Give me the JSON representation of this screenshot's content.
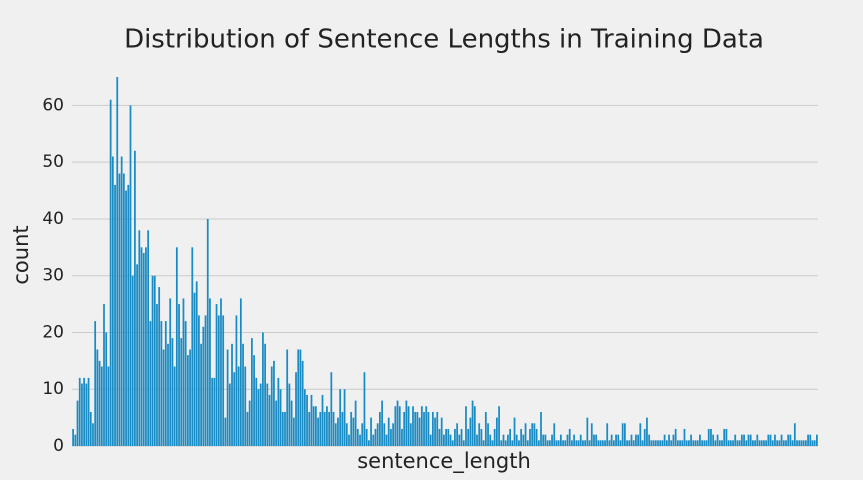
{
  "chart_data": {
    "type": "bar",
    "title": "Distribution of Sentence Lengths in Training Data",
    "x_label": "sentence_length",
    "y_label": "count",
    "color": "#1a8bc3",
    "ylim": [
      0,
      68
    ],
    "yticks": [
      0,
      10,
      20,
      30,
      40,
      50,
      60
    ],
    "grid": true,
    "values": [
      3,
      2,
      8,
      12,
      11,
      12,
      11,
      12,
      6,
      4,
      22,
      17,
      15,
      14,
      25,
      20,
      14,
      61,
      51,
      46,
      65,
      48,
      51,
      48,
      45,
      46,
      60,
      30,
      52,
      32,
      38,
      35,
      34,
      35,
      38,
      22,
      30,
      30,
      25,
      28,
      22,
      17,
      22,
      18,
      26,
      19,
      14,
      35,
      25,
      19,
      26,
      22,
      16,
      17,
      35,
      27,
      29,
      23,
      18,
      21,
      23,
      40,
      26,
      12,
      12,
      25,
      23,
      26,
      23,
      5,
      17,
      11,
      18,
      13,
      23,
      14,
      26,
      18,
      14,
      6,
      8,
      19,
      16,
      12,
      10,
      11,
      20,
      18,
      11,
      9,
      14,
      15,
      8,
      12,
      10,
      6,
      6,
      17,
      11,
      8,
      5,
      13,
      17,
      17,
      15,
      10,
      9,
      6,
      9,
      7,
      7,
      5,
      6,
      9,
      6,
      7,
      6,
      13,
      6,
      4,
      5,
      10,
      6,
      10,
      4,
      2,
      6,
      5,
      8,
      3,
      2,
      4,
      13,
      3,
      1,
      5,
      2,
      3,
      4,
      6,
      8,
      4,
      2,
      5,
      3,
      4,
      7,
      8,
      7,
      3,
      6,
      8,
      7,
      4,
      7,
      6,
      6,
      5,
      7,
      6,
      7,
      6,
      2,
      6,
      5,
      6,
      3,
      5,
      2,
      3,
      3,
      2,
      1,
      3,
      4,
      2,
      3,
      1,
      7,
      3,
      5,
      8,
      7,
      2,
      4,
      3,
      1,
      6,
      4,
      2,
      1,
      3,
      5,
      7,
      1,
      2,
      1,
      2,
      3,
      1,
      5,
      2,
      1,
      3,
      2,
      4,
      1,
      3,
      4,
      4,
      3,
      1,
      6,
      2,
      2,
      1,
      1,
      2,
      4,
      1,
      1,
      2,
      1,
      1,
      2,
      3,
      1,
      2,
      1,
      1,
      2,
      1,
      1,
      5,
      1,
      4,
      2,
      2,
      1,
      1,
      1,
      1,
      4,
      1,
      2,
      1,
      2,
      2,
      1,
      4,
      4,
      1,
      1,
      2,
      1,
      2,
      2,
      4,
      1,
      3,
      5,
      2,
      1,
      1,
      1,
      1,
      1,
      1,
      2,
      1,
      2,
      1,
      2,
      3,
      1,
      1,
      1,
      3,
      1,
      1,
      2,
      1,
      1,
      1,
      2,
      1,
      1,
      1,
      3,
      3,
      2,
      1,
      2,
      1,
      1,
      3,
      3,
      1,
      1,
      1,
      2,
      1,
      1,
      2,
      2,
      1,
      2,
      2,
      1,
      1,
      2,
      1,
      1,
      1,
      1,
      2,
      2,
      1,
      2,
      1,
      1,
      2,
      1,
      1,
      2,
      2,
      1,
      4,
      1,
      1,
      1,
      1,
      1,
      2,
      2,
      1,
      1,
      2
    ]
  }
}
